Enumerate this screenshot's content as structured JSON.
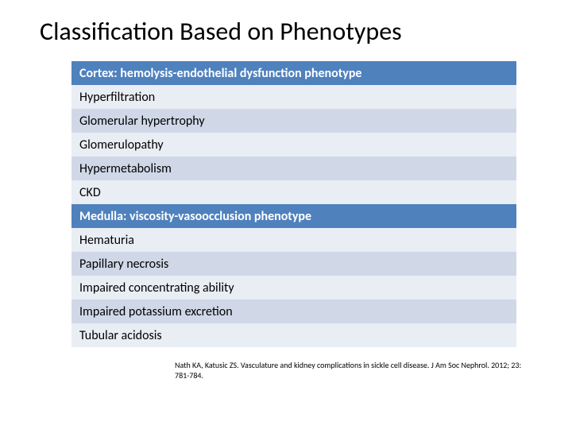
{
  "title": "Classification Based on Phenotypes",
  "table": {
    "header_bg": "#4f81bd",
    "header_color": "#ffffff",
    "row_light_bg": "#e9edf4",
    "row_dark_bg": "#d0d8e8",
    "text_color": "#000000",
    "rows": [
      {
        "text": "Cortex: hemolysis-endothelial dysfunction phenotype",
        "type": "header"
      },
      {
        "text": "Hyperfiltration",
        "type": "light"
      },
      {
        "text": "Glomerular hypertrophy",
        "type": "dark"
      },
      {
        "text": "Glomerulopathy",
        "type": "light"
      },
      {
        "text": "Hypermetabolism",
        "type": "dark"
      },
      {
        "text": "CKD",
        "type": "light"
      },
      {
        "text": "Medulla: viscosity-vasoocclusion phenotype",
        "type": "header"
      },
      {
        "text": "Hematuria",
        "type": "light"
      },
      {
        "text": "Papillary necrosis",
        "type": "dark"
      },
      {
        "text": "Impaired concentrating ability",
        "type": "light"
      },
      {
        "text": "Impaired potassium excretion",
        "type": "dark"
      },
      {
        "text": "Tubular acidosis",
        "type": "light"
      }
    ]
  },
  "citation": "Nath KA, Katusic ZS. Vasculature and kidney complications in sickle cell disease. J Am Soc Nephrol. 2012; 23: 781-784."
}
